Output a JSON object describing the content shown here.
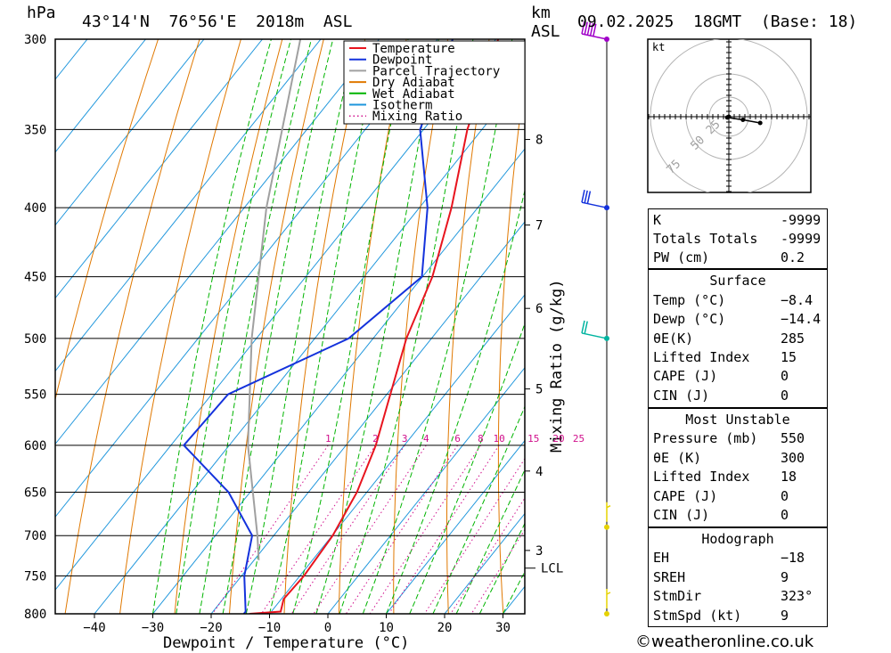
{
  "title": {
    "location": "43°14'N  76°56'E  2018m  ASL",
    "datetime": "09.02.2025  18GMT  (Base: 18)",
    "unit_left": "hPa",
    "unit_km": "km",
    "unit_asl": "ASL"
  },
  "axes": {
    "xlabel": "Dewpoint / Temperature (°C)",
    "mix_label": "Mixing Ratio (g/kg)",
    "lcl_label": "LCL"
  },
  "legend": [
    {
      "label": "Temperature",
      "color": "#e8141e",
      "style": "solid"
    },
    {
      "label": "Dewpoint",
      "color": "#1432dc",
      "style": "solid"
    },
    {
      "label": "Parcel Trajectory",
      "color": "#a0a0a0",
      "style": "solid"
    },
    {
      "label": "Dry Adiabat",
      "color": "#e07800",
      "style": "solid"
    },
    {
      "label": "Wet Adiabat",
      "color": "#00b400",
      "style": "solid"
    },
    {
      "label": "Isotherm",
      "color": "#1e96dc",
      "style": "solid"
    },
    {
      "label": "Mixing Ratio",
      "color": "#d0108c",
      "style": "dotted"
    }
  ],
  "chart_data": {
    "type": "skew-t",
    "pressure_levels": [
      300,
      350,
      400,
      450,
      500,
      550,
      600,
      650,
      700,
      750,
      800
    ],
    "pressure_labels": [
      "300",
      "350",
      "400",
      "450",
      "500",
      "550",
      "600",
      "650",
      "700",
      "750",
      "800"
    ],
    "x_ticks": [
      -40,
      -30,
      -20,
      -10,
      0,
      10,
      20,
      30
    ],
    "x_tick_labels": [
      "−40",
      "−30",
      "−20",
      "−10",
      "0",
      "10",
      "20",
      "30"
    ],
    "km_levels": [
      {
        "km": 8,
        "p": 356
      },
      {
        "km": 7,
        "p": 412
      },
      {
        "km": 6,
        "p": 475
      },
      {
        "km": 5,
        "p": 545
      },
      {
        "km": 4,
        "p": 627
      },
      {
        "km": 3,
        "p": 718
      }
    ],
    "lcl_p": 740,
    "mixing_ratios": [
      1,
      2,
      3,
      4,
      6,
      8,
      10,
      15,
      20,
      25
    ],
    "temperature": [
      {
        "p": 300,
        "t": -49.6
      },
      {
        "p": 350,
        "t": -42.5
      },
      {
        "p": 400,
        "t": -34.5
      },
      {
        "p": 450,
        "t": -28.3
      },
      {
        "p": 500,
        "t": -24.3
      },
      {
        "p": 550,
        "t": -19.4
      },
      {
        "p": 600,
        "t": -14.9
      },
      {
        "p": 650,
        "t": -11.7
      },
      {
        "p": 700,
        "t": -9.9
      },
      {
        "p": 750,
        "t": -9.3
      },
      {
        "p": 780,
        "t": -9.6
      },
      {
        "p": 797,
        "t": -8.4
      },
      {
        "p": 800,
        "t": -13.4
      }
    ],
    "dewpoint": [
      {
        "p": 300,
        "t": -57.4
      },
      {
        "p": 350,
        "t": -50.6
      },
      {
        "p": 400,
        "t": -38.6
      },
      {
        "p": 450,
        "t": -30.1
      },
      {
        "p": 500,
        "t": -34.2
      },
      {
        "p": 550,
        "t": -47.2
      },
      {
        "p": 600,
        "t": -47.8
      },
      {
        "p": 650,
        "t": -33.7
      },
      {
        "p": 700,
        "t": -23.7
      },
      {
        "p": 750,
        "t": -19.5
      },
      {
        "p": 797,
        "t": -14.4
      },
      {
        "p": 800,
        "t": -14.4
      }
    ],
    "parcel": [
      {
        "p": 300,
        "t": -83.5
      },
      {
        "p": 400,
        "t": -66.2
      },
      {
        "p": 500,
        "t": -50.8
      },
      {
        "p": 600,
        "t": -36.8
      },
      {
        "p": 700,
        "t": -22.8
      },
      {
        "p": 730,
        "t": -19.2
      }
    ],
    "wind_barbs": [
      {
        "p": 300,
        "color": "#a000c8",
        "speed_kt": 50
      },
      {
        "p": 400,
        "color": "#1432dc",
        "speed_kt": 30
      },
      {
        "p": 500,
        "color": "#00b4a0",
        "speed_kt": 15
      },
      {
        "p": 690,
        "color": "#e6d200",
        "speed_kt": 5
      },
      {
        "p": 800,
        "color": "#e6d200",
        "speed_kt": 5
      }
    ],
    "hodograph": {
      "unit": "kt",
      "rings": [
        25,
        50,
        75
      ],
      "ring_labels": [
        "25",
        "50",
        "75"
      ],
      "trace": [
        [
          0,
          0
        ],
        [
          -2,
          -1
        ],
        [
          18,
          -4
        ],
        [
          40,
          -8
        ]
      ]
    }
  },
  "indices": {
    "k_label": "K",
    "k_value": "-9999",
    "tt_label": "Totals Totals",
    "tt_value": "-9999",
    "pw_label": "PW (cm)",
    "pw_value": "0.2"
  },
  "surface": {
    "header": "Surface",
    "rows": [
      {
        "label": "Temp (°C)",
        "value": "−8.4"
      },
      {
        "label": "Dewp (°C)",
        "value": "−14.4"
      },
      {
        "label": "θE(K)",
        "value": "285"
      },
      {
        "label": "Lifted Index",
        "value": "15"
      },
      {
        "label": "CAPE (J)",
        "value": "0"
      },
      {
        "label": "CIN (J)",
        "value": "0"
      }
    ]
  },
  "most_unstable": {
    "header": "Most Unstable",
    "rows": [
      {
        "label": "Pressure (mb)",
        "value": "550"
      },
      {
        "label": "θE (K)",
        "value": "300"
      },
      {
        "label": "Lifted Index",
        "value": "18"
      },
      {
        "label": "CAPE (J)",
        "value": "0"
      },
      {
        "label": "CIN (J)",
        "value": "0"
      }
    ]
  },
  "hodograph_table": {
    "header": "Hodograph",
    "rows": [
      {
        "label": "EH",
        "value": "−18"
      },
      {
        "label": "SREH",
        "value": "9"
      },
      {
        "label": "StmDir",
        "value": "323°"
      },
      {
        "label": "StmSpd (kt)",
        "value": "9"
      }
    ]
  },
  "copyright": "©weatheronline.co.uk"
}
